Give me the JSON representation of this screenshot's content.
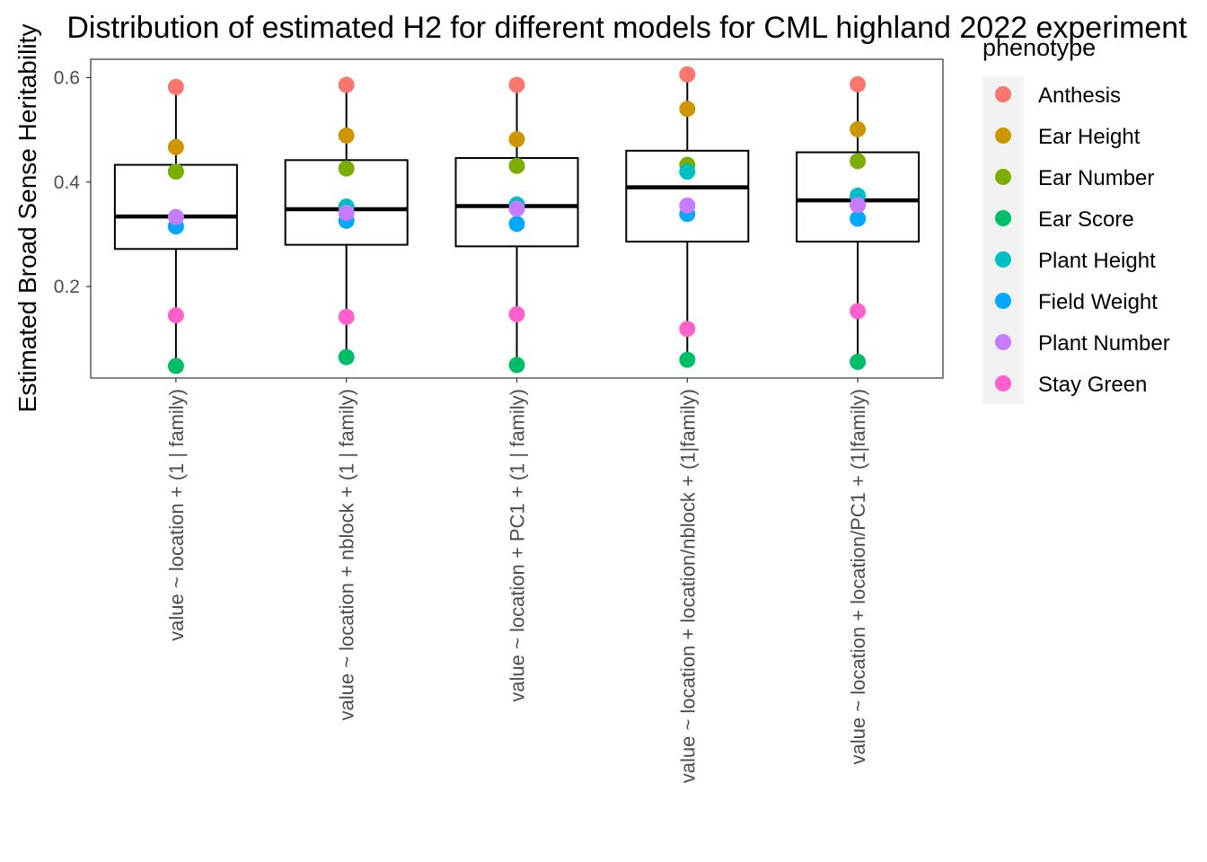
{
  "chart_data": {
    "type": "boxplot",
    "title": "Distribution of estimated H2 for different models for CML highland 2022 experiment",
    "xlabel": "",
    "ylabel": "Estimated Broad Sense Heritability",
    "ylim": [
      0.025,
      0.635
    ],
    "yticks": [
      0.2,
      0.4,
      0.6
    ],
    "ytick_labels": [
      "0.2",
      "0.4",
      "0.6"
    ],
    "grid": false,
    "legend": {
      "title": "phenotype",
      "placement": "right",
      "entries": [
        "Anthesis",
        "Ear Height",
        "Ear Number",
        "Ear Score",
        "Plant Height",
        "Field Weight",
        "Plant Number",
        "Stay Green"
      ]
    },
    "categories": [
      "value ~ location + (1 | family)",
      "value ~ location + nblock + (1 | family)",
      "value ~ location + PC1 + (1 | family)",
      "value ~ location + location/nblock + (1|family)",
      "value ~ location + location/PC1 + (1|family)"
    ],
    "boxes": [
      {
        "min": 0.048,
        "q1": 0.272,
        "median": 0.334,
        "q3": 0.433,
        "max": 0.582
      },
      {
        "min": 0.065,
        "q1": 0.28,
        "median": 0.348,
        "q3": 0.442,
        "max": 0.586
      },
      {
        "min": 0.05,
        "q1": 0.277,
        "median": 0.354,
        "q3": 0.446,
        "max": 0.586
      },
      {
        "min": 0.06,
        "q1": 0.286,
        "median": 0.39,
        "q3": 0.46,
        "max": 0.606
      },
      {
        "min": 0.056,
        "q1": 0.286,
        "median": 0.365,
        "q3": 0.457,
        "max": 0.587
      }
    ],
    "series": [
      {
        "name": "Anthesis",
        "color": "#F8766D",
        "values": [
          0.582,
          0.586,
          0.586,
          0.606,
          0.587
        ]
      },
      {
        "name": "Ear Height",
        "color": "#CD9600",
        "values": [
          0.467,
          0.489,
          0.482,
          0.54,
          0.501
        ]
      },
      {
        "name": "Ear Number",
        "color": "#7CAE00",
        "values": [
          0.42,
          0.426,
          0.431,
          0.433,
          0.44
        ]
      },
      {
        "name": "Ear Score",
        "color": "#00BE67",
        "values": [
          0.048,
          0.065,
          0.05,
          0.06,
          0.056
        ]
      },
      {
        "name": "Plant Height",
        "color": "#00BFC4",
        "values": [
          0.333,
          0.353,
          0.357,
          0.42,
          0.374
        ]
      },
      {
        "name": "Field Weight",
        "color": "#00A9FF",
        "values": [
          0.315,
          0.326,
          0.32,
          0.339,
          0.33
        ]
      },
      {
        "name": "Plant Number",
        "color": "#C77CFF",
        "values": [
          0.333,
          0.341,
          0.349,
          0.355,
          0.356
        ]
      },
      {
        "name": "Stay Green",
        "color": "#FF61CC",
        "values": [
          0.145,
          0.142,
          0.147,
          0.119,
          0.153
        ]
      }
    ]
  }
}
